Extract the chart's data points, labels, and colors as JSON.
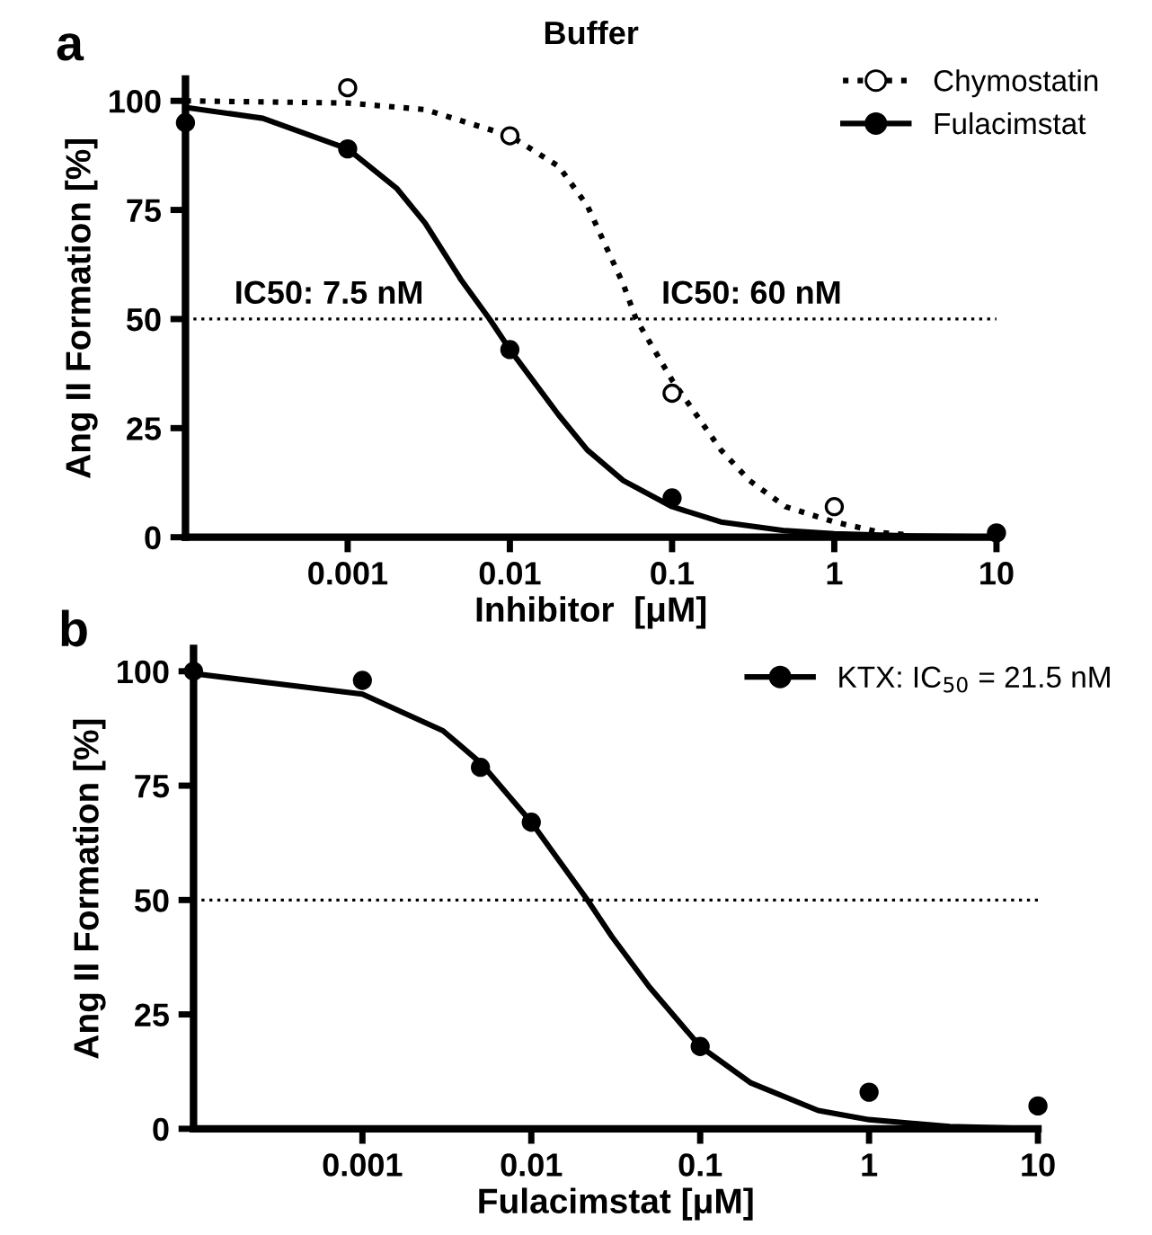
{
  "chart_data": [
    {
      "type": "line",
      "title": "Buffer",
      "xlabel": "Inhibitor  [μM]",
      "ylabel": "Ang II Formation [%]",
      "log": "x",
      "xlim": [
        0.0001,
        10
      ],
      "ylim": [
        0,
        105
      ],
      "xticks": [
        0.001,
        0.01,
        0.1,
        1,
        10
      ],
      "yticks": [
        0,
        25,
        50,
        75,
        100
      ],
      "grid": false,
      "legend": "top right",
      "series": [
        {
          "name": "Chymostatin",
          "line_style": "dotted",
          "marker": "none",
          "color": "#000000",
          "x": [
            0.0001,
            0.001,
            0.003,
            0.01,
            0.02,
            0.03,
            0.05,
            0.06,
            0.1,
            0.2,
            0.3,
            0.5,
            1,
            2,
            3
          ],
          "values": [
            100,
            99.5,
            98,
            92,
            85,
            76,
            58,
            50,
            36,
            20,
            13,
            7,
            3.5,
            1,
            0.5
          ]
        },
        {
          "type": "scatter",
          "marker": "circle",
          "color": "#ffffff",
          "x": [
            0.001,
            0.01,
            0.1,
            1
          ],
          "values": [
            103,
            92,
            33,
            7
          ]
        },
        {
          "name": "Fulacimstat",
          "line_style": "solid",
          "marker": "none",
          "color": "#000000",
          "x": [
            0.0001,
            0.0003,
            0.001,
            0.002,
            0.003,
            0.005,
            0.0075,
            0.01,
            0.02,
            0.03,
            0.05,
            0.1,
            0.2,
            0.5,
            1,
            3,
            10
          ],
          "values": [
            98.5,
            96,
            89,
            80,
            72,
            59,
            50,
            43,
            28,
            20,
            13,
            7,
            3.5,
            1.5,
            0.8,
            0.3,
            0.1
          ]
        },
        {
          "type": "scatter",
          "marker": "circle",
          "color": "#000000",
          "x": [
            0.0001,
            0.001,
            0.01,
            0.1,
            10
          ],
          "values": [
            95,
            89,
            43,
            9,
            1
          ]
        }
      ],
      "ref_lines": [
        {
          "axis": "y",
          "value": 50,
          "line_style": "dotted",
          "color": "#000000"
        }
      ],
      "annotations": [
        "a",
        {
          "text": "IC50: 7.5 nM",
          "x": 0.0002,
          "y": 52
        },
        {
          "text": "IC50: 60 nM",
          "x": 0.086,
          "y": 52
        }
      ]
    },
    {
      "type": "line",
      "xlabel": "Fulacimstat [μM]",
      "ylabel": "Ang II Formation [%]",
      "log": "x",
      "xlim": [
        0.0001,
        10
      ],
      "ylim": [
        0,
        105
      ],
      "xticks": [
        0.001,
        0.01,
        0.1,
        1,
        10
      ],
      "yticks": [
        0,
        25,
        50,
        75,
        100
      ],
      "grid": false,
      "legend": "top right",
      "series": [
        {
          "name": "KTX: IC$_{50}$ = 21.5 nM",
          "line_style": "solid",
          "marker": "none",
          "color": "#000000",
          "x": [
            0.0001,
            0.001,
            0.003,
            0.005,
            0.01,
            0.0215,
            0.03,
            0.05,
            0.1,
            0.2,
            0.5,
            1,
            3,
            10
          ],
          "values": [
            99.5,
            95,
            87,
            80,
            67,
            50,
            42,
            31,
            18,
            10,
            4,
            2,
            0.5,
            0
          ]
        },
        {
          "type": "scatter",
          "marker": "circle",
          "color": "#000000",
          "x": [
            0.0001,
            0.001,
            0.005,
            0.01,
            0.1,
            1,
            10
          ],
          "values": [
            100,
            98,
            79,
            67,
            18,
            8,
            5
          ]
        }
      ],
      "ref_lines": [
        {
          "axis": "y",
          "value": 50,
          "line_style": "dotted",
          "color": "#000000"
        }
      ],
      "annotations": [
        "b"
      ]
    }
  ]
}
